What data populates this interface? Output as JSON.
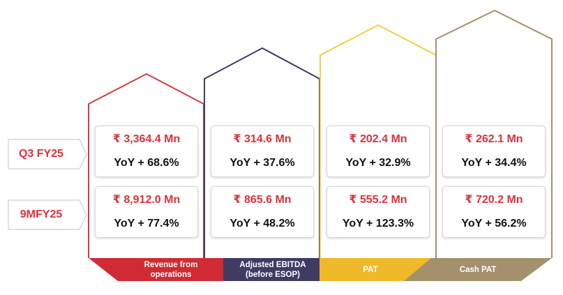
{
  "rows": [
    {
      "label": "Q3 FY25"
    },
    {
      "label": "9MFY25"
    }
  ],
  "metrics": [
    {
      "name": "Revenue from operations",
      "name_line1": "Revenue from",
      "name_line2": "operations",
      "color": "#d02b34",
      "q3": {
        "value": "₹ 3,364.4 Mn",
        "yoy": "YoY + 68.6%"
      },
      "nine_m": {
        "value": "₹ 8,912.0 Mn",
        "yoy": "YoY + 77.4%"
      }
    },
    {
      "name": "Adjusted EBITDA (before ESOP)",
      "name_line1": "Adjusted EBITDA",
      "name_line2": "(before ESOP)",
      "color": "#3f3c64",
      "q3": {
        "value": "₹ 314.6 Mn",
        "yoy": "YoY + 37.6%"
      },
      "nine_m": {
        "value": "₹ 865.6 Mn",
        "yoy": "YoY + 48.2%"
      }
    },
    {
      "name": "PAT",
      "name_line1": "PAT",
      "name_line2": "",
      "color": "#f0b929",
      "q3": {
        "value": "₹ 202.4 Mn",
        "yoy": "YoY + 32.9%"
      },
      "nine_m": {
        "value": "₹ 555.2 Mn",
        "yoy": "YoY + 123.3%"
      }
    },
    {
      "name": "Cash PAT",
      "name_line1": "Cash PAT",
      "name_line2": "",
      "color": "#a4906c",
      "q3": {
        "value": "₹ 262.1 Mn",
        "yoy": "YoY + 34.4%"
      },
      "nine_m": {
        "value": "₹ 720.2 Mn",
        "yoy": "YoY + 56.2%"
      }
    }
  ],
  "colors": {
    "accent_red": "#e0303a",
    "revenue": "#d02b34",
    "ebitda": "#3f3c64",
    "pat": "#f0b929",
    "cash_pat": "#a4906c",
    "label_outline": "#cfcfcf"
  }
}
